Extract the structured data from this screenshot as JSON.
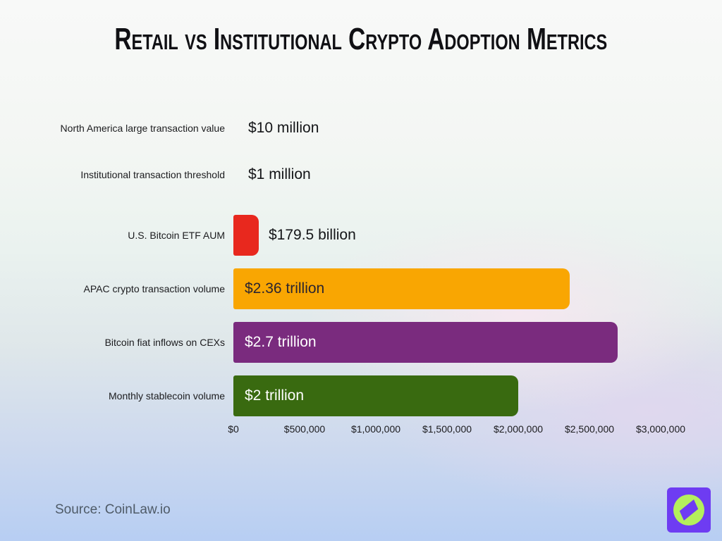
{
  "source": "Source: CoinLaw.io",
  "logo": {
    "name": "coinlaw-compass-logo",
    "square_color": "#6e3cf2",
    "circle_color": "#b4ef5c",
    "needle_color": "#6e3cf2"
  },
  "chart_data": {
    "type": "bar",
    "orientation": "horizontal",
    "title": "Retail vs Institutional Crypto Adoption Metrics",
    "categories": [
      "North America large transaction value",
      "Institutional transaction threshold",
      "U.S. Bitcoin ETF AUM",
      "APAC crypto transaction volume",
      "Bitcoin fiat inflows on CEXs",
      "Monthly stablecoin volume"
    ],
    "values_usd_millions": [
      10,
      1,
      179500,
      2360000,
      2700000,
      2000000
    ],
    "value_labels": [
      "$10 million",
      "$1 million",
      "$179.5 billion",
      "$2.36 trillion",
      "$2.7 trillion",
      "$2 trillion"
    ],
    "bar_colors": [
      null,
      null,
      "#e8281e",
      "#f9a602",
      "#7a2b7e",
      "#396a10"
    ],
    "value_label_placement": [
      "outside",
      "outside",
      "outside",
      "inside",
      "inside",
      "inside"
    ],
    "value_label_colors": [
      "#141518",
      "#141518",
      "#141518",
      "#2b2530",
      "#ffffff",
      "#ffffff"
    ],
    "xlabel": "",
    "ylabel": "",
    "xlim_usd_millions": [
      0,
      3000000
    ],
    "x_tick_values_millions": [
      0,
      500000,
      1000000,
      1500000,
      2000000,
      2500000,
      3000000
    ],
    "x_ticks": [
      "$0",
      "$500,000",
      "$1,000,000",
      "$1,500,000",
      "$2,000,000",
      "$2,500,000",
      "$3,000,000"
    ],
    "grid": false,
    "legend": "none"
  }
}
